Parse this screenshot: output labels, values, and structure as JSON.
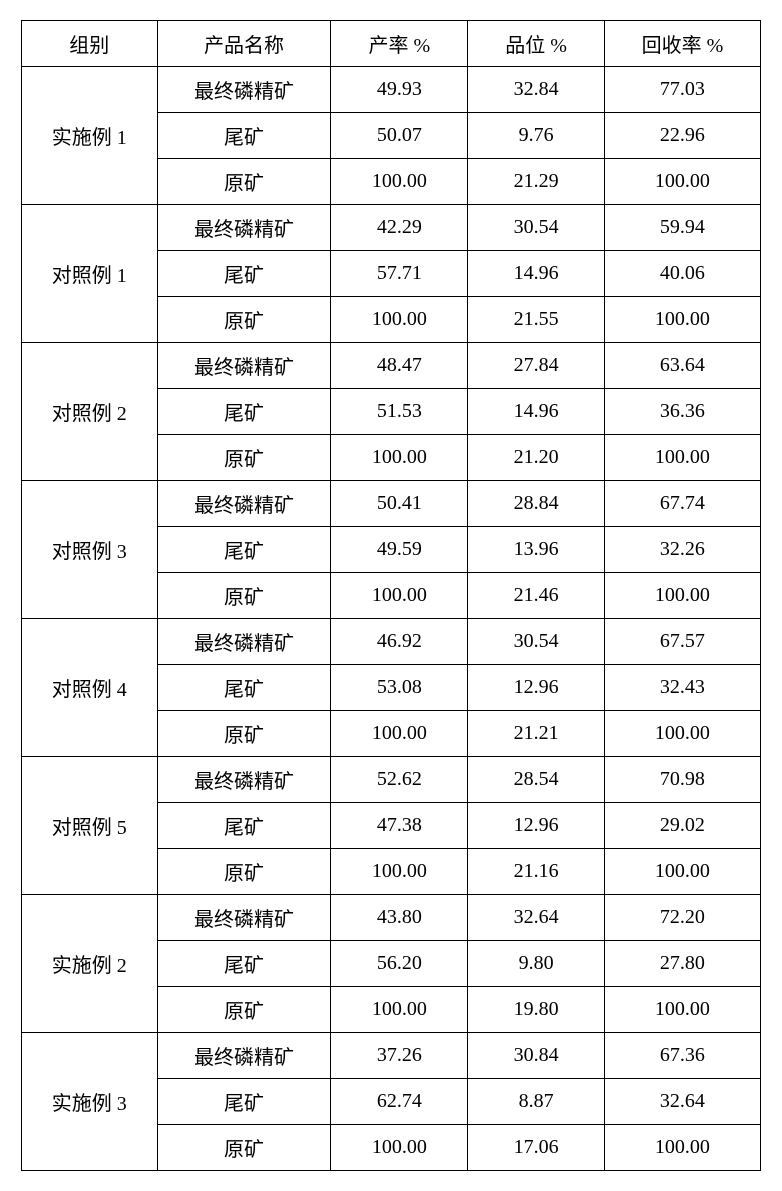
{
  "table": {
    "columns": [
      {
        "key": "group",
        "label": "组别",
        "class": "col-group"
      },
      {
        "key": "product",
        "label": "产品名称",
        "class": "col-product"
      },
      {
        "key": "yield",
        "label": "产率 %",
        "class": "col-yield"
      },
      {
        "key": "grade",
        "label": "品位 %",
        "class": "col-grade"
      },
      {
        "key": "recovery",
        "label": "回收率 %",
        "class": "col-recovery"
      }
    ],
    "groups": [
      {
        "name": "实施例 1",
        "rows": [
          {
            "product": "最终磷精矿",
            "yield": "49.93",
            "grade": "32.84",
            "recovery": "77.03"
          },
          {
            "product": "尾矿",
            "yield": "50.07",
            "grade": "9.76",
            "recovery": "22.96"
          },
          {
            "product": "原矿",
            "yield": "100.00",
            "grade": "21.29",
            "recovery": "100.00"
          }
        ]
      },
      {
        "name": "对照例 1",
        "rows": [
          {
            "product": "最终磷精矿",
            "yield": "42.29",
            "grade": "30.54",
            "recovery": "59.94"
          },
          {
            "product": "尾矿",
            "yield": "57.71",
            "grade": "14.96",
            "recovery": "40.06"
          },
          {
            "product": "原矿",
            "yield": "100.00",
            "grade": "21.55",
            "recovery": "100.00"
          }
        ]
      },
      {
        "name": "对照例 2",
        "rows": [
          {
            "product": "最终磷精矿",
            "yield": "48.47",
            "grade": "27.84",
            "recovery": "63.64"
          },
          {
            "product": "尾矿",
            "yield": "51.53",
            "grade": "14.96",
            "recovery": "36.36"
          },
          {
            "product": "原矿",
            "yield": "100.00",
            "grade": "21.20",
            "recovery": "100.00"
          }
        ]
      },
      {
        "name": "对照例 3",
        "rows": [
          {
            "product": "最终磷精矿",
            "yield": "50.41",
            "grade": "28.84",
            "recovery": "67.74"
          },
          {
            "product": "尾矿",
            "yield": "49.59",
            "grade": "13.96",
            "recovery": "32.26"
          },
          {
            "product": "原矿",
            "yield": "100.00",
            "grade": "21.46",
            "recovery": "100.00"
          }
        ]
      },
      {
        "name": "对照例 4",
        "rows": [
          {
            "product": "最终磷精矿",
            "yield": "46.92",
            "grade": "30.54",
            "recovery": "67.57"
          },
          {
            "product": "尾矿",
            "yield": "53.08",
            "grade": "12.96",
            "recovery": "32.43"
          },
          {
            "product": "原矿",
            "yield": "100.00",
            "grade": "21.21",
            "recovery": "100.00"
          }
        ]
      },
      {
        "name": "对照例 5",
        "rows": [
          {
            "product": "最终磷精矿",
            "yield": "52.62",
            "grade": "28.54",
            "recovery": "70.98"
          },
          {
            "product": "尾矿",
            "yield": "47.38",
            "grade": "12.96",
            "recovery": "29.02"
          },
          {
            "product": "原矿",
            "yield": "100.00",
            "grade": "21.16",
            "recovery": "100.00"
          }
        ]
      },
      {
        "name": "实施例 2",
        "rows": [
          {
            "product": "最终磷精矿",
            "yield": "43.80",
            "grade": "32.64",
            "recovery": "72.20"
          },
          {
            "product": "尾矿",
            "yield": "56.20",
            "grade": "9.80",
            "recovery": "27.80"
          },
          {
            "product": "原矿",
            "yield": "100.00",
            "grade": "19.80",
            "recovery": "100.00"
          }
        ]
      },
      {
        "name": "实施例 3",
        "rows": [
          {
            "product": "最终磷精矿",
            "yield": "37.26",
            "grade": "30.84",
            "recovery": "67.36"
          },
          {
            "product": "尾矿",
            "yield": "62.74",
            "grade": "8.87",
            "recovery": "32.64"
          },
          {
            "product": "原矿",
            "yield": "100.00",
            "grade": "17.06",
            "recovery": "100.00"
          }
        ]
      }
    ]
  }
}
